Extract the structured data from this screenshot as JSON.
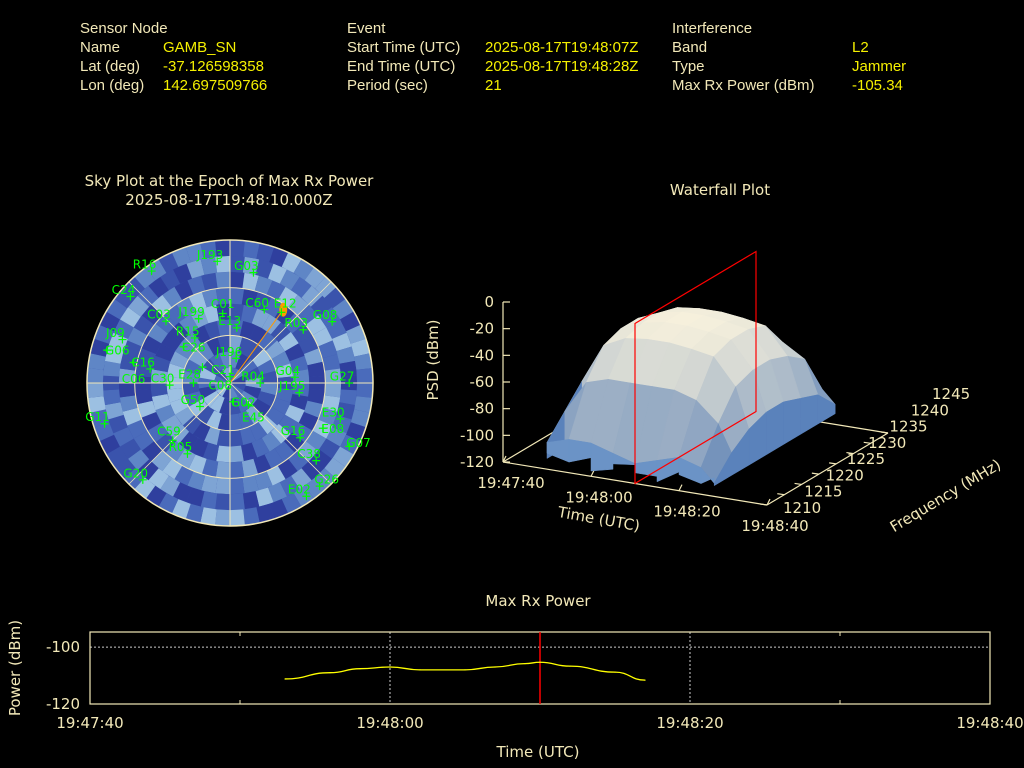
{
  "header": {
    "sensor": {
      "title": "Sensor Node",
      "rows": [
        {
          "label": "Name",
          "value": "GAMB_SN"
        },
        {
          "label": "Lat (deg)",
          "value": "-37.126598358"
        },
        {
          "label": "Lon (deg)",
          "value": "142.697509766"
        }
      ]
    },
    "event": {
      "title": "Event",
      "rows": [
        {
          "label": "Start Time (UTC)",
          "value": "2025-08-17T19:48:07Z"
        },
        {
          "label": "End Time (UTC)",
          "value": "2025-08-17T19:48:28Z"
        },
        {
          "label": "Period (sec)",
          "value": "21"
        }
      ]
    },
    "interference": {
      "title": "Interference",
      "rows": [
        {
          "label": "Band",
          "value": "L2"
        },
        {
          "label": "Type",
          "value": "Jammer"
        },
        {
          "label": "Max Rx Power (dBm)",
          "value": "-105.34"
        }
      ]
    }
  },
  "colors": {
    "label": "#f2e8b8",
    "value": "#f5f000",
    "satellite": "#00ff00",
    "jammer": "#ff9900",
    "marker": "#ff0000",
    "line": "#ffff00",
    "surface_low": "#4a74b0",
    "surface_high": "#f6f0dc"
  },
  "chart_data": [
    {
      "type": "polar-scatter",
      "title": "Sky Plot at the Epoch of Max Rx Power",
      "subtitle": "2025-08-17T19:48:10.000Z",
      "elevation_rings": [
        0,
        30,
        60
      ],
      "jammer_direction": {
        "az": 36,
        "el": 33
      },
      "satellites": [
        {
          "name": "J193",
          "az": 354,
          "el": 13
        },
        {
          "name": "R16",
          "az": 325,
          "el": 4
        },
        {
          "name": "G03",
          "az": 12,
          "el": 19
        },
        {
          "name": "C24",
          "az": 311,
          "el": 7
        },
        {
          "name": "C03",
          "az": 314,
          "el": 34
        },
        {
          "name": "J199",
          "az": 334,
          "el": 45
        },
        {
          "name": "C01",
          "az": 354,
          "el": 46
        },
        {
          "name": "C60",
          "az": 25,
          "el": 39
        },
        {
          "name": "E12",
          "az": 36,
          "el": 35
        },
        {
          "name": "E13",
          "az": 7,
          "el": 55
        },
        {
          "name": "R03",
          "az": 54,
          "el": 33
        },
        {
          "name": "G08",
          "az": 59,
          "el": 15
        },
        {
          "name": "R15",
          "az": 322,
          "el": 54
        },
        {
          "name": "C26",
          "az": 308,
          "el": 53
        },
        {
          "name": "J196",
          "az": 14,
          "el": 74
        },
        {
          "name": "C21",
          "az": 0,
          "el": 86
        },
        {
          "name": "G04",
          "az": 85,
          "el": 49
        },
        {
          "name": "J195",
          "az": 98,
          "el": 46
        },
        {
          "name": "G27",
          "az": 90,
          "el": 15
        },
        {
          "name": "E30",
          "az": 108,
          "el": 17
        },
        {
          "name": "E08",
          "az": 116,
          "el": 25
        },
        {
          "name": "G07",
          "az": 118,
          "el": 5
        },
        {
          "name": "G16",
          "az": 128,
          "el": 34
        },
        {
          "name": "C38",
          "az": 132,
          "el": 17
        },
        {
          "name": "E02",
          "az": 146,
          "el": 4
        },
        {
          "name": "G26",
          "az": 139,
          "el": 4
        },
        {
          "name": "G11",
          "az": 252,
          "el": 7
        },
        {
          "name": "G50",
          "az": 232,
          "el": 66
        },
        {
          "name": "R05",
          "az": 211,
          "el": 38
        },
        {
          "name": "C59",
          "az": 225,
          "el": 39
        },
        {
          "name": "G20",
          "az": 222,
          "el": 8
        },
        {
          "name": "C16",
          "az": 280,
          "el": 39
        },
        {
          "name": "C30",
          "az": 268,
          "el": 52
        },
        {
          "name": "E28",
          "az": 270,
          "el": 67
        },
        {
          "name": "C08",
          "az": 300,
          "el": 70
        },
        {
          "name": "R04",
          "az": 90,
          "el": 71
        },
        {
          "name": "G02",
          "az": 170,
          "el": 78
        },
        {
          "name": "E45",
          "az": 140,
          "el": 72
        },
        {
          "name": "J09",
          "az": 292,
          "el": 17
        },
        {
          "name": "G06",
          "az": 285,
          "el": 10
        },
        {
          "name": "C06",
          "az": 282,
          "el": 28
        }
      ]
    },
    {
      "type": "surface",
      "title": "Waterfall Plot",
      "xlabel": "Time (UTC)",
      "ylabel": "Frequency (MHz)",
      "zlabel": "PSD (dBm)",
      "x_ticks": [
        "19:47:40",
        "19:48:00",
        "19:48:20",
        "19:48:40"
      ],
      "y_ticks": [
        1210,
        1215,
        1220,
        1225,
        1230,
        1235,
        1240,
        1245
      ],
      "z_ticks": [
        0,
        -20,
        -40,
        -60,
        -80,
        -100,
        -120
      ],
      "xlim": [
        "19:47:40",
        "19:48:40"
      ],
      "ylim": [
        1210,
        1245
      ],
      "zlim": [
        -120,
        0
      ],
      "marker_time": "19:48:10",
      "times": [
        "19:47:50",
        "19:47:55",
        "19:48:00",
        "19:48:05",
        "19:48:10",
        "19:48:15",
        "19:48:20",
        "19:48:25",
        "19:48:28"
      ],
      "freqs": [
        1210,
        1215,
        1220,
        1225,
        1230,
        1235,
        1240,
        1245
      ],
      "psd": [
        [
          -100,
          -85,
          -70,
          -65,
          -65,
          -70,
          -80,
          -100
        ],
        [
          -95,
          -60,
          -40,
          -35,
          -35,
          -40,
          -60,
          -95
        ],
        [
          -95,
          -55,
          -32,
          -28,
          -28,
          -32,
          -55,
          -90
        ],
        [
          -100,
          -55,
          -30,
          -25,
          -25,
          -30,
          -50,
          -85
        ],
        [
          -105,
          -55,
          -30,
          -25,
          -25,
          -30,
          -50,
          -85
        ],
        [
          -100,
          -55,
          -32,
          -27,
          -27,
          -32,
          -55,
          -85
        ],
        [
          -95,
          -60,
          -35,
          -30,
          -30,
          -35,
          -55,
          -90
        ],
        [
          -100,
          -75,
          -55,
          -50,
          -50,
          -55,
          -65,
          -95
        ],
        [
          -110,
          -95,
          -85,
          -80,
          -80,
          -85,
          -90,
          -105
        ]
      ]
    },
    {
      "type": "line",
      "title": "Max Rx Power",
      "xlabel": "Time (UTC)",
      "ylabel": "Power (dBm)",
      "x_ticks": [
        "19:47:40",
        "19:48:00",
        "19:48:20",
        "19:48:40"
      ],
      "y_ticks": [
        -100,
        -120
      ],
      "xlim": [
        "19:47:40",
        "19:48:40"
      ],
      "ylim": [
        -120,
        -94.7
      ],
      "grid": true,
      "marker_time": "19:48:10",
      "x": [
        "19:47:53",
        "19:47:56",
        "19:47:58",
        "19:48:00",
        "19:48:02",
        "19:48:05",
        "19:48:07",
        "19:48:09",
        "19:48:10",
        "19:48:12",
        "19:48:15",
        "19:48:17"
      ],
      "y": [
        -111.2,
        -109.0,
        -107.6,
        -107.0,
        -108.0,
        -108.0,
        -107.0,
        -105.8,
        -105.34,
        -106.7,
        -108.8,
        -111.6
      ]
    }
  ]
}
